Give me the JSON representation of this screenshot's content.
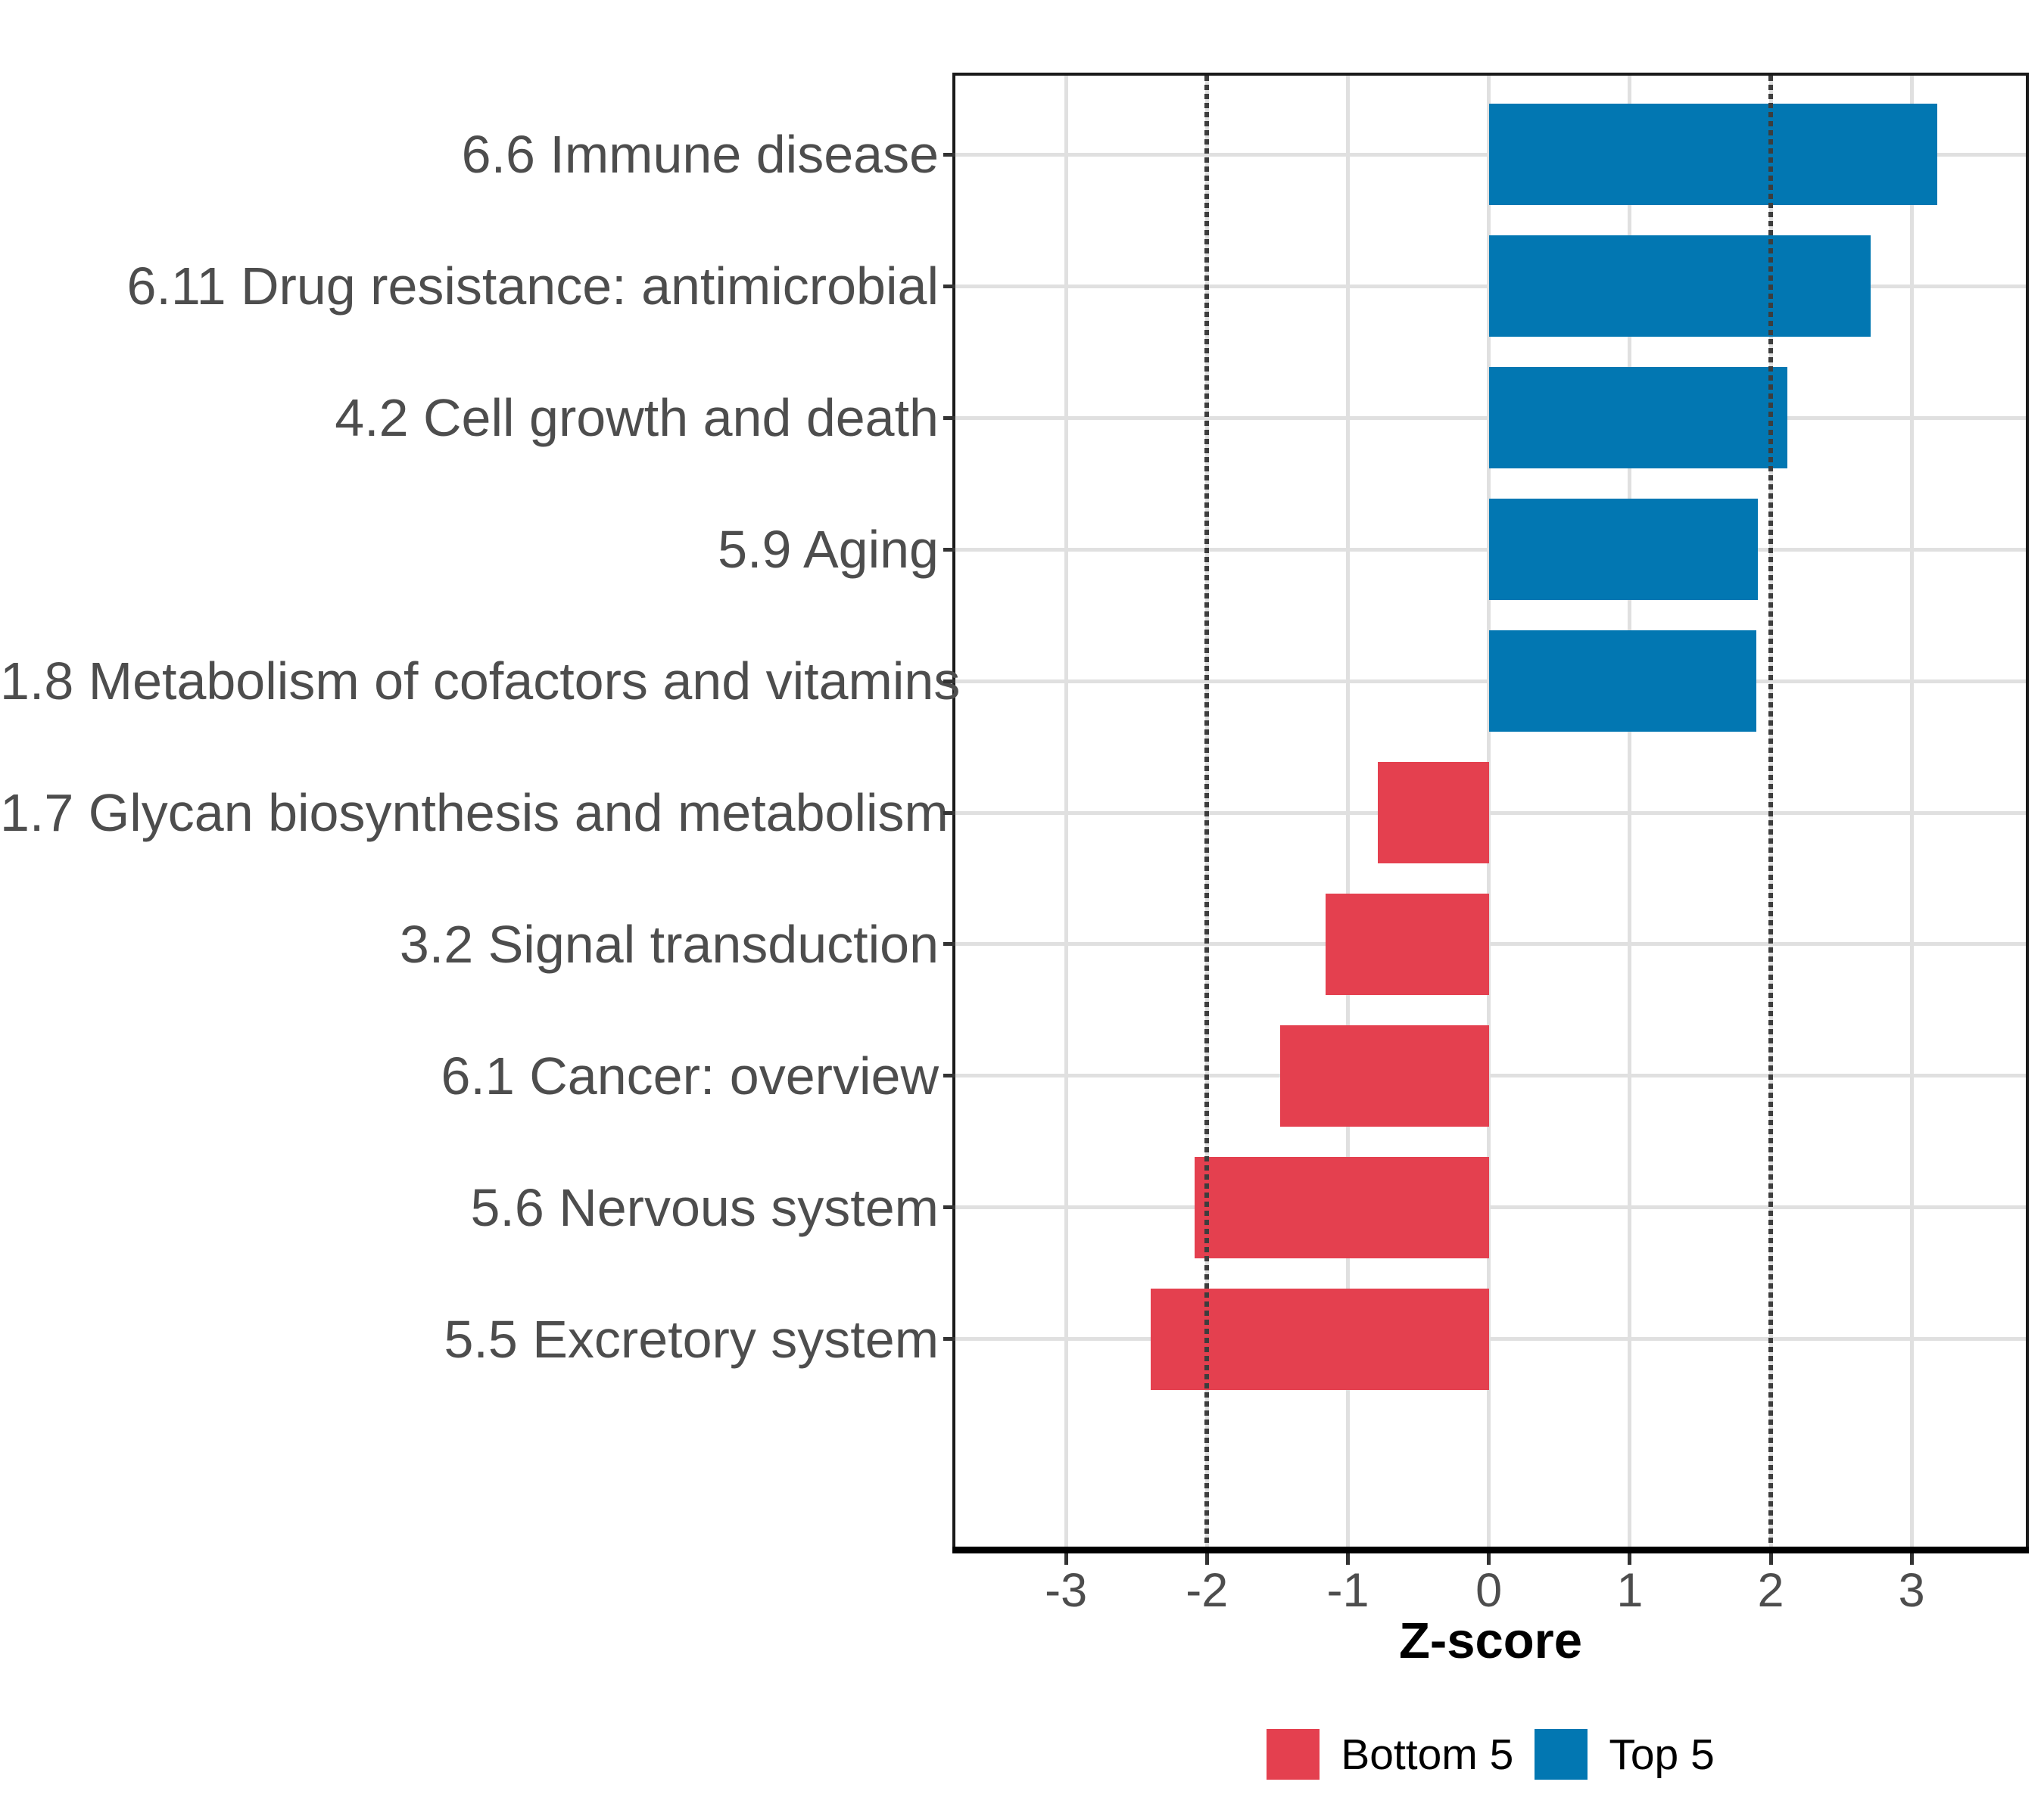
{
  "chart_data": {
    "type": "bar",
    "orientation": "horizontal",
    "xlabel": "Z-score",
    "categories": [
      "6.6 Immune disease",
      "6.11 Drug resistance: antimicrobial",
      "4.2 Cell growth and death",
      "5.9 Aging",
      "1.8 Metabolism of cofactors and vitamins",
      "1.7 Glycan biosynthesis and metabolism",
      "3.2 Signal transduction",
      "6.1 Cancer: overview",
      "5.6 Nervous system",
      "5.5 Excretory system"
    ],
    "values": [
      3.18,
      2.71,
      2.12,
      1.91,
      1.9,
      -0.79,
      -1.16,
      -1.48,
      -2.09,
      -2.4
    ],
    "groups": [
      "Top 5",
      "Top 5",
      "Top 5",
      "Top 5",
      "Top 5",
      "Bottom 5",
      "Bottom 5",
      "Bottom 5",
      "Bottom 5",
      "Bottom 5"
    ],
    "x_ticks": [
      -3,
      -2,
      -1,
      0,
      1,
      2,
      3
    ],
    "xlim": [
      -3.785,
      3.81
    ],
    "ref_lines": [
      -2,
      2
    ],
    "grid": true,
    "legend": {
      "position": "bottom",
      "entries": [
        {
          "label": "Bottom 5",
          "color": "#e4404f"
        },
        {
          "label": "Top 5",
          "color": "#0277b2"
        }
      ]
    },
    "colors": {
      "Bottom 5": "#e4404f",
      "Top 5": "#0277b2"
    },
    "style": {
      "grid_color": "#e0e0e0",
      "refline_color": "#3d3d3d",
      "axis_text_color": "#4d4d4d",
      "panel_border_color": "#1a1a1a"
    }
  }
}
